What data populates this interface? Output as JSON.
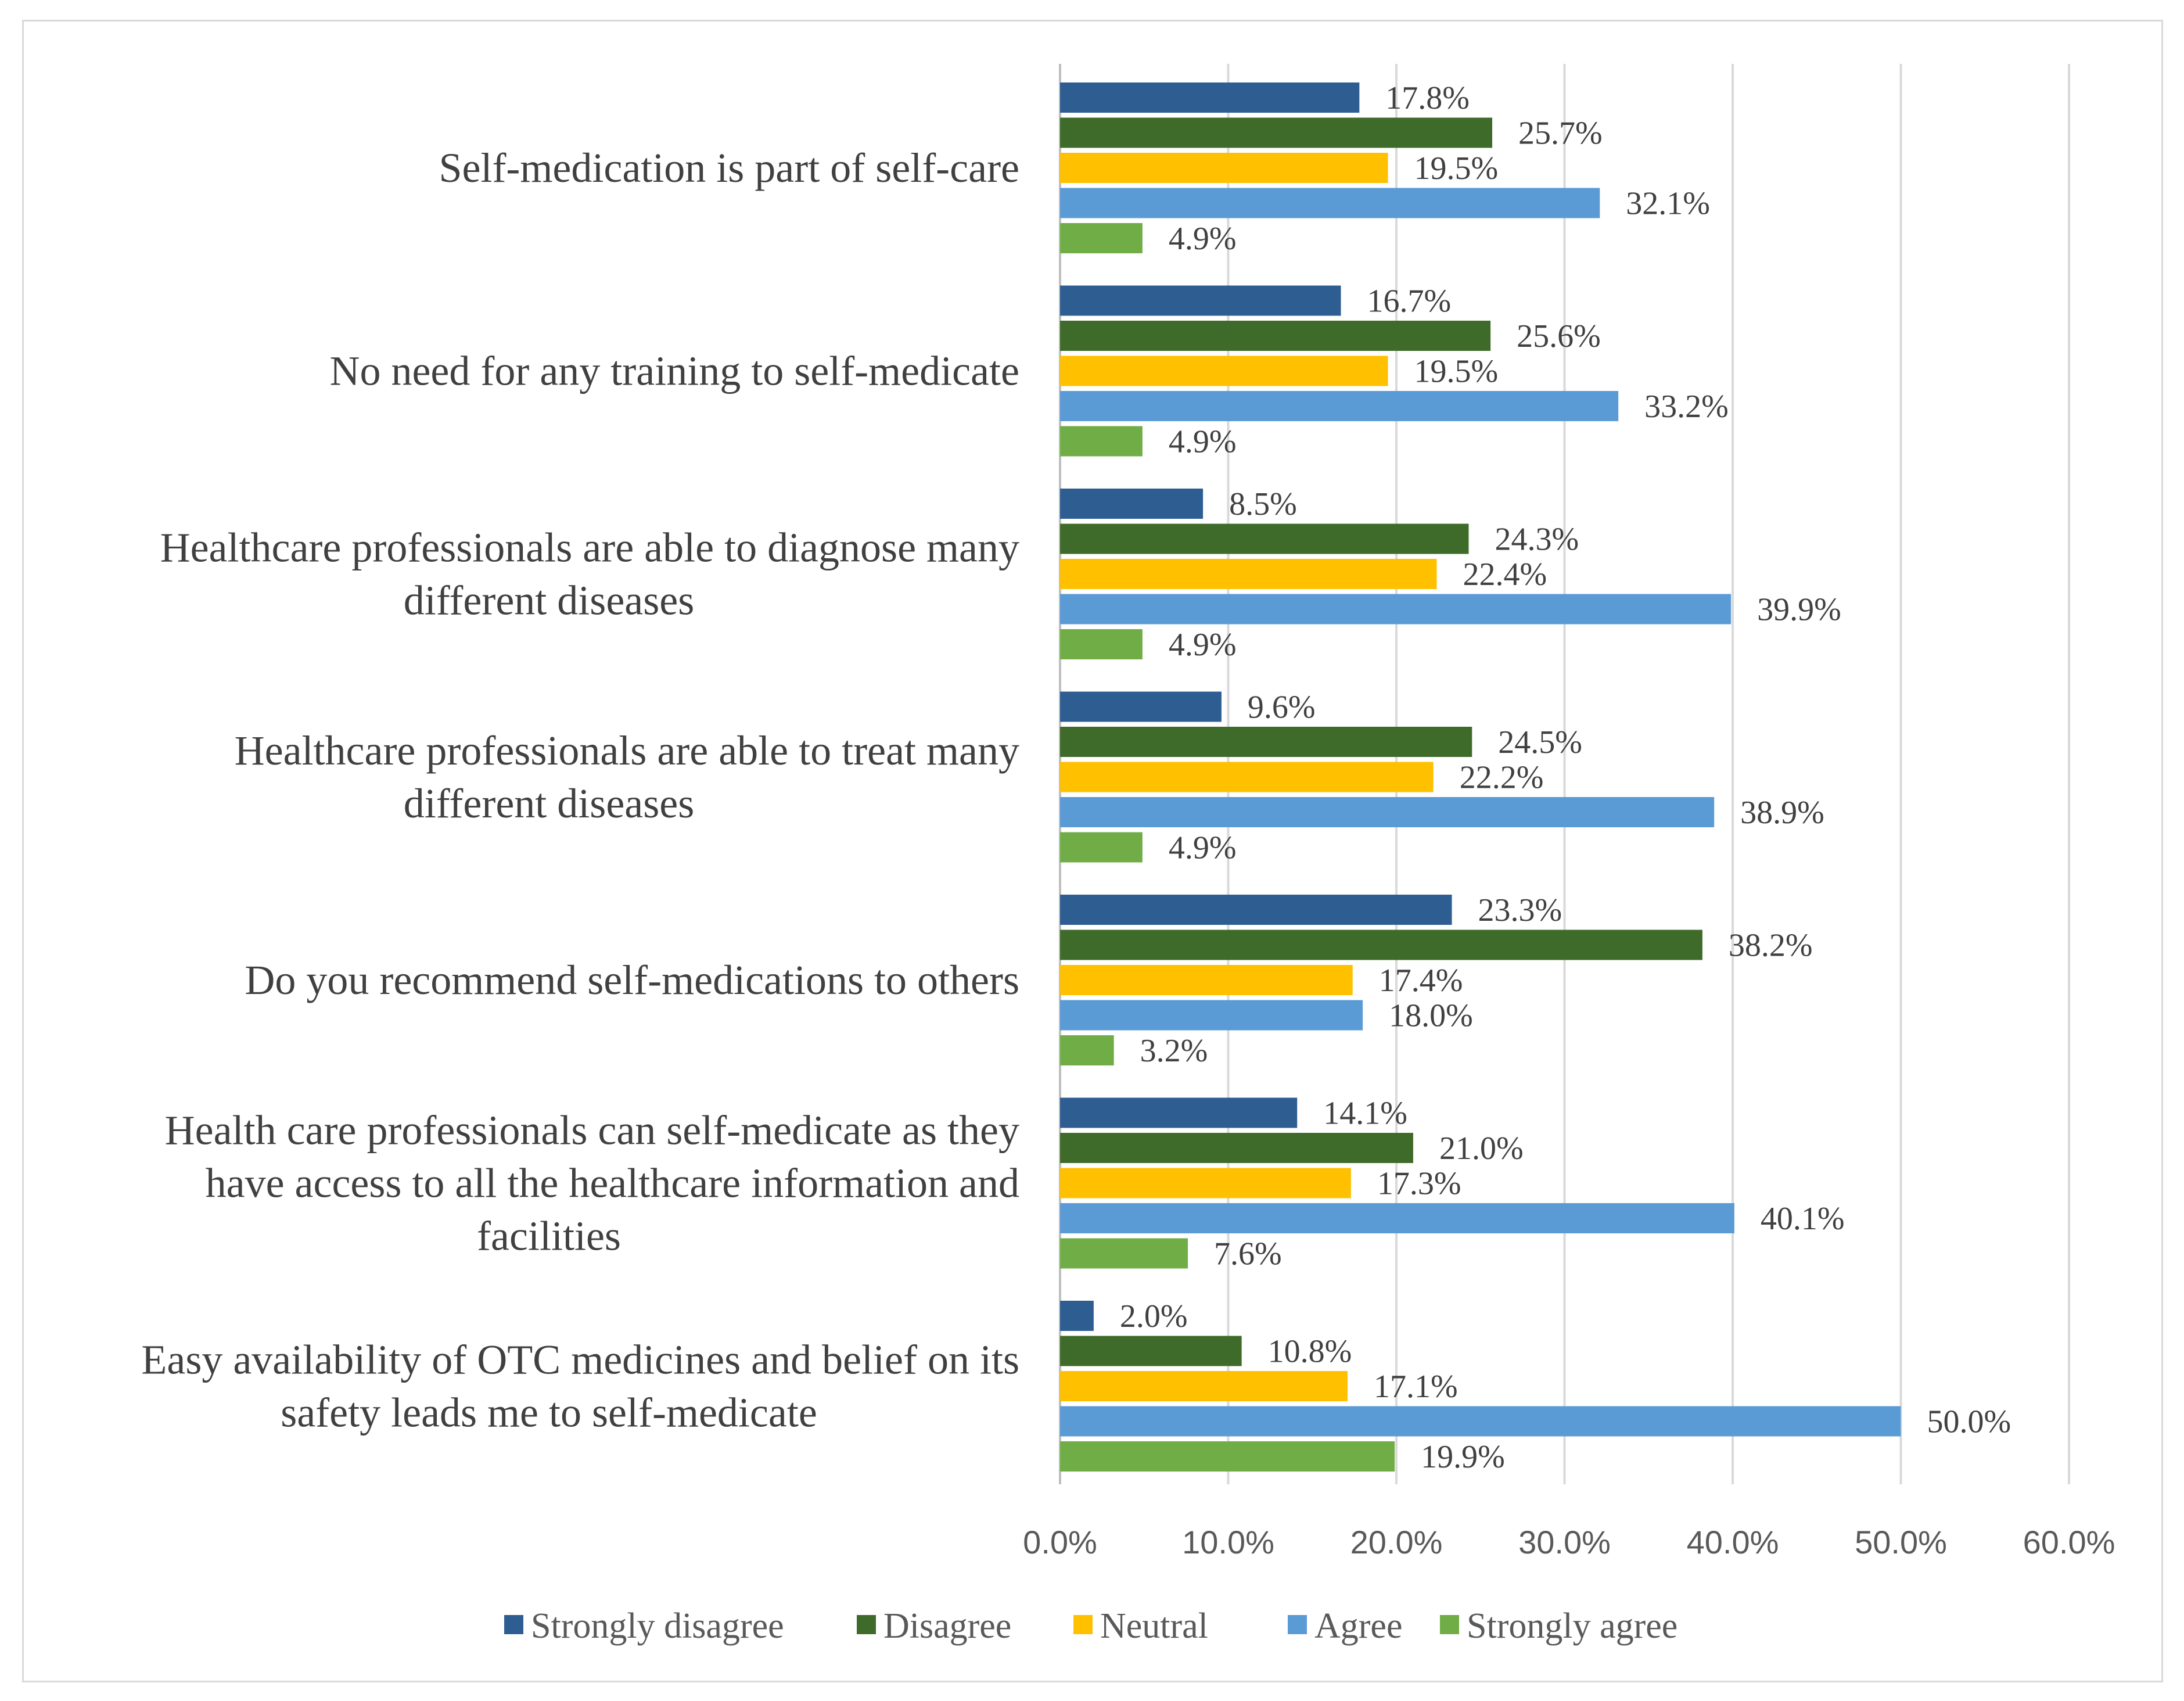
{
  "chart_data": {
    "type": "bar",
    "orientation": "horizontal",
    "title": "",
    "xlabel": "",
    "ylabel": "",
    "xlim": [
      0,
      60
    ],
    "ticks": [
      "0.0%",
      "10.0%",
      "20.0%",
      "30.0%",
      "40.0%",
      "50.0%",
      "60.0%"
    ],
    "categories": [
      [
        "Self-medication is part of self-care"
      ],
      [
        "No need for any training to self-medicate"
      ],
      [
        "Healthcare professionals are able to diagnose many",
        "different diseases"
      ],
      [
        "Healthcare professionals are able to treat many",
        "different diseases"
      ],
      [
        "Do you recommend self-medications to others"
      ],
      [
        "Health care professionals can self-medicate as they",
        "have access to all the healthcare information and",
        "facilities"
      ],
      [
        "Easy availability of OTC medicines and belief on its",
        "safety leads me to self-medicate"
      ]
    ],
    "series": [
      {
        "name": "Strongly disagree",
        "color": "#2e5d91",
        "values": [
          17.8,
          16.7,
          8.5,
          9.6,
          23.3,
          14.1,
          2.0
        ],
        "labels": [
          "17.8%",
          "16.7%",
          "8.5%",
          "9.6%",
          "23.3%",
          "14.1%",
          "2.0%"
        ]
      },
      {
        "name": "Disagree",
        "color": "#3f6b2a",
        "values": [
          25.7,
          25.6,
          24.3,
          24.5,
          38.2,
          21.0,
          10.8
        ],
        "labels": [
          "25.7%",
          "25.6%",
          "24.3%",
          "24.5%",
          "38.2%",
          "21.0%",
          "10.8%"
        ]
      },
      {
        "name": "Neutral",
        "color": "#ffc000",
        "values": [
          19.5,
          19.5,
          22.4,
          22.2,
          17.4,
          17.3,
          17.1
        ],
        "labels": [
          "19.5%",
          "19.5%",
          "22.4%",
          "22.2%",
          "17.4%",
          "17.3%",
          "17.1%"
        ]
      },
      {
        "name": "Agree",
        "color": "#5b9bd5",
        "values": [
          32.1,
          33.2,
          39.9,
          38.9,
          18.0,
          40.1,
          50.0
        ],
        "labels": [
          "32.1%",
          "33.2%",
          "39.9%",
          "38.9%",
          "18.0%",
          "40.1%",
          "50.0%"
        ]
      },
      {
        "name": "Strongly agree",
        "color": "#70ad47",
        "values": [
          4.9,
          4.9,
          4.9,
          4.9,
          3.2,
          7.6,
          19.9
        ],
        "labels": [
          "4.9%",
          "4.9%",
          "4.9%",
          "4.9%",
          "3.2%",
          "7.6%",
          "19.9%"
        ]
      }
    ],
    "legend_position": "bottom",
    "grid": true
  }
}
